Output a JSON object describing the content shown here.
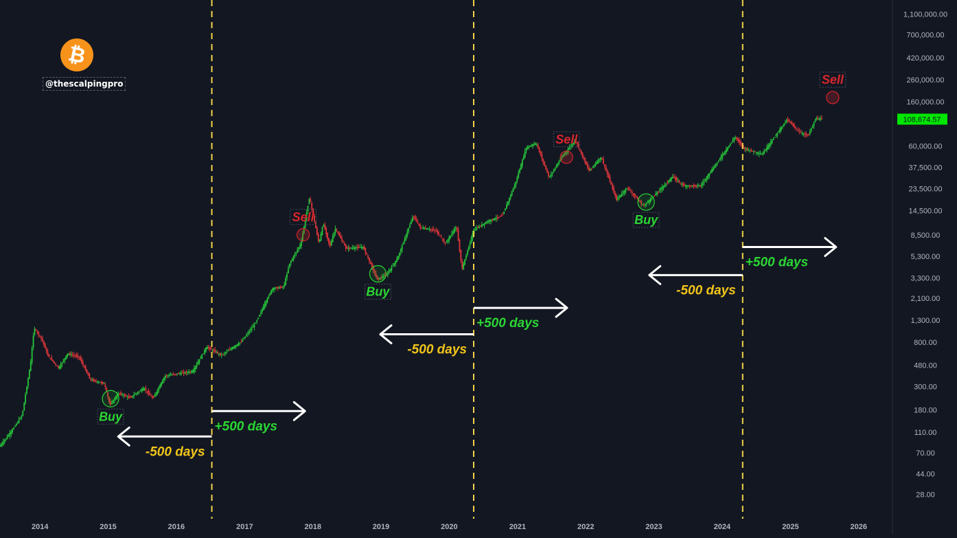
{
  "brand": {
    "handle": "@thescalpingpro",
    "logo_icon": "bitcoin-icon",
    "logo_color": "#f7931a"
  },
  "price_label": "108,674.57",
  "chart_data": {
    "type": "candlestick",
    "scale": "log",
    "xlim": [
      "2013-06-01",
      "2026-07-01"
    ],
    "ylim": [
      19,
      1500000
    ],
    "x_ticks": [
      "2014",
      "2015",
      "2016",
      "2017",
      "2018",
      "2019",
      "2020",
      "2021",
      "2022",
      "2023",
      "2024",
      "2025",
      "2026"
    ],
    "y_ticks": [
      {
        "value": 1100000,
        "label": "1,100,000.00"
      },
      {
        "value": 700000,
        "label": "700,000.00"
      },
      {
        "value": 420000,
        "label": "420,000.00"
      },
      {
        "value": 260000,
        "label": "260,000.00"
      },
      {
        "value": 160000,
        "label": "160,000.00"
      },
      {
        "value": 60000,
        "label": "60,000.00"
      },
      {
        "value": 37500,
        "label": "37,500.00"
      },
      {
        "value": 23500,
        "label": "23,500.00"
      },
      {
        "value": 14500,
        "label": "14,500.00"
      },
      {
        "value": 8500,
        "label": "8,500.00"
      },
      {
        "value": 5300,
        "label": "5,300.00"
      },
      {
        "value": 3300,
        "label": "3,300.00"
      },
      {
        "value": 2100,
        "label": "2,100.00"
      },
      {
        "value": 1300,
        "label": "1,300.00"
      },
      {
        "value": 800,
        "label": "800.00"
      },
      {
        "value": 480,
        "label": "480.00"
      },
      {
        "value": 300,
        "label": "300.00"
      },
      {
        "value": 180,
        "label": "180.00"
      },
      {
        "value": 110,
        "label": "110.00"
      },
      {
        "value": 70,
        "label": "70.00"
      },
      {
        "value": 44,
        "label": "44.00"
      },
      {
        "value": 28,
        "label": "28.00"
      }
    ],
    "current_price": 108674.57,
    "price_path": [
      [
        "2013-06-01",
        80
      ],
      [
        "2013-08-01",
        110
      ],
      [
        "2013-10-01",
        160
      ],
      [
        "2013-11-15",
        500
      ],
      [
        "2013-12-04",
        1100
      ],
      [
        "2014-01-15",
        850
      ],
      [
        "2014-02-15",
        600
      ],
      [
        "2014-04-15",
        450
      ],
      [
        "2014-06-01",
        620
      ],
      [
        "2014-08-01",
        580
      ],
      [
        "2014-10-01",
        350
      ],
      [
        "2014-12-15",
        320
      ],
      [
        "2015-01-14",
        200
      ],
      [
        "2015-03-01",
        260
      ],
      [
        "2015-05-01",
        235
      ],
      [
        "2015-07-15",
        290
      ],
      [
        "2015-09-01",
        230
      ],
      [
        "2015-11-05",
        380
      ],
      [
        "2016-01-15",
        400
      ],
      [
        "2016-04-01",
        420
      ],
      [
        "2016-06-15",
        720
      ],
      [
        "2016-09-01",
        600
      ],
      [
        "2016-12-15",
        800
      ],
      [
        "2017-03-01",
        1200
      ],
      [
        "2017-06-01",
        2600
      ],
      [
        "2017-08-01",
        2700
      ],
      [
        "2017-09-01",
        4500
      ],
      [
        "2017-11-01",
        7000
      ],
      [
        "2017-12-17",
        19500
      ],
      [
        "2018-02-06",
        7000
      ],
      [
        "2018-03-01",
        11000
      ],
      [
        "2018-04-05",
        6600
      ],
      [
        "2018-05-05",
        9800
      ],
      [
        "2018-07-01",
        6300
      ],
      [
        "2018-10-01",
        6500
      ],
      [
        "2018-12-15",
        3200
      ],
      [
        "2019-02-01",
        3500
      ],
      [
        "2019-04-01",
        5000
      ],
      [
        "2019-06-26",
        13000
      ],
      [
        "2019-08-01",
        10000
      ],
      [
        "2019-10-26",
        9300
      ],
      [
        "2019-12-15",
        7000
      ],
      [
        "2020-02-12",
        10300
      ],
      [
        "2020-03-13",
        4000
      ],
      [
        "2020-05-15",
        9500
      ],
      [
        "2020-08-01",
        11500
      ],
      [
        "2020-10-15",
        13000
      ],
      [
        "2020-12-25",
        27000
      ],
      [
        "2021-02-20",
        58000
      ],
      [
        "2021-04-14",
        64000
      ],
      [
        "2021-06-22",
        30000
      ],
      [
        "2021-09-01",
        48000
      ],
      [
        "2021-11-10",
        68000
      ],
      [
        "2022-01-22",
        35000
      ],
      [
        "2022-03-28",
        47000
      ],
      [
        "2022-06-18",
        18500
      ],
      [
        "2022-08-15",
        24000
      ],
      [
        "2022-11-09",
        16000
      ],
      [
        "2023-01-15",
        21000
      ],
      [
        "2023-04-14",
        30500
      ],
      [
        "2023-06-15",
        25000
      ],
      [
        "2023-09-11",
        25000
      ],
      [
        "2023-12-01",
        40000
      ],
      [
        "2024-03-14",
        73500
      ],
      [
        "2024-05-01",
        57000
      ],
      [
        "2024-08-05",
        50000
      ],
      [
        "2024-11-15",
        90000
      ],
      [
        "2024-12-17",
        108000
      ],
      [
        "2025-02-28",
        80000
      ],
      [
        "2025-04-08",
        76000
      ],
      [
        "2025-05-22",
        111000
      ],
      [
        "2025-06-15",
        108674.57
      ]
    ],
    "vlines": [
      "2016-07-09",
      "2020-05-11",
      "2024-04-20"
    ],
    "annotations": [
      {
        "label": "Sell",
        "kind": "sell",
        "date": "2017-11-10",
        "price": 8500
      },
      {
        "label": "Sell",
        "kind": "sell",
        "date": "2021-09-20",
        "price": 47000
      },
      {
        "label": "Sell",
        "kind": "sell",
        "date": "2025-08-15",
        "price": 175000
      },
      {
        "label": "Buy",
        "kind": "buy",
        "date": "2015-01-14",
        "price": 230
      },
      {
        "label": "Buy",
        "kind": "buy",
        "date": "2018-12-15",
        "price": 3600
      },
      {
        "label": "Buy",
        "kind": "buy",
        "date": "2022-11-20",
        "price": 17500
      }
    ],
    "arrows": [
      {
        "label": "-500 days",
        "direction": "left",
        "date_from": "2016-07-09",
        "date_to": "2015-02-24",
        "price": 100
      },
      {
        "label": "+500 days",
        "direction": "right",
        "date_from": "2016-07-09",
        "date_to": "2017-11-20",
        "price": 175
      },
      {
        "label": "-500 days",
        "direction": "left",
        "date_from": "2020-05-11",
        "date_to": "2018-12-28",
        "price": 950
      },
      {
        "label": "+500 days",
        "direction": "right",
        "date_from": "2020-05-11",
        "date_to": "2021-09-23",
        "price": 1700
      },
      {
        "label": "-500 days",
        "direction": "left",
        "date_from": "2024-04-20",
        "date_to": "2022-12-07",
        "price": 3500
      },
      {
        "label": "+500 days",
        "direction": "right",
        "date_from": "2024-04-20",
        "date_to": "2025-09-02",
        "price": 6500
      }
    ],
    "colors": {
      "up": "#26c63a",
      "down": "#e0363a",
      "buy": "#2bd633",
      "sell": "#d8262c",
      "arrow_label": "#f0c419",
      "arrow_label_plus": "#2bd633",
      "vline": "#f3d34a",
      "price_tag": "#00e600"
    }
  }
}
